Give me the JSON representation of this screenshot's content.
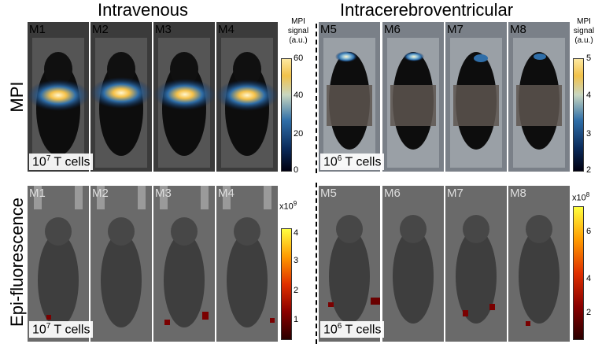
{
  "headers": {
    "left": "Intravenous",
    "right": "Intracerebroventricular"
  },
  "rows": {
    "mpi": "MPI",
    "epi": "Epi-fluorescence"
  },
  "mouse_labels": [
    "M1",
    "M2",
    "M3",
    "M4",
    "M5",
    "M6",
    "M7",
    "M8"
  ],
  "cell_counts": {
    "iv": {
      "base": "10",
      "exp": "7",
      "unit": " T cells"
    },
    "icv": {
      "base": "10",
      "exp": "6",
      "unit": " T cells"
    }
  },
  "colorbars": {
    "mpi_left": {
      "title_l1": "MPI",
      "title_l2": "signal",
      "title_l3": "(a.u.)",
      "ticks": [
        "60",
        "40",
        "20",
        "0"
      ]
    },
    "mpi_right": {
      "title_l1": "MPI",
      "title_l2": "signal",
      "title_l3": "(a.u.)",
      "ticks": [
        "5",
        "4",
        "3",
        "2"
      ]
    },
    "epi_left": {
      "scale_base": "x10",
      "scale_exp": "9",
      "ticks": [
        "4",
        "3",
        "2",
        "1"
      ]
    },
    "epi_right": {
      "scale_base": "x10",
      "scale_exp": "8",
      "ticks": [
        "6",
        "4",
        "2"
      ]
    }
  },
  "colors": {
    "mpi_scale": [
      "#000010",
      "#0a2a5a",
      "#2f6ea8",
      "#c8d6c0",
      "#f2c24a",
      "#fde8a0"
    ],
    "fluor_scale": [
      "#2a0000",
      "#8a0000",
      "#e03000",
      "#ff9a00",
      "#ffff40"
    ]
  }
}
